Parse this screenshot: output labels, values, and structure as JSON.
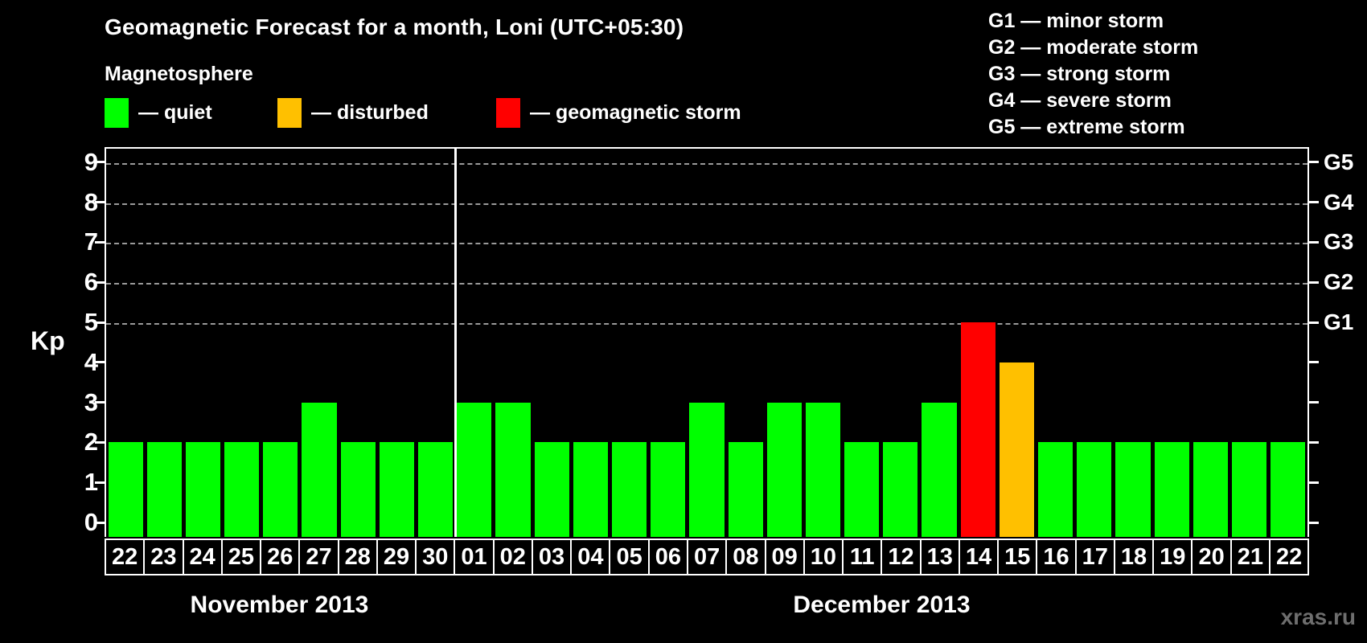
{
  "title": "Geomagnetic Forecast for a month, Loni (UTC+05:30)",
  "legend": {
    "heading": "Magnetosphere",
    "items": [
      {
        "name": "quiet",
        "label": "— quiet",
        "color": "#00ff00"
      },
      {
        "name": "disturbed",
        "label": "— disturbed",
        "color": "#ffc000"
      },
      {
        "name": "geomagnetic-storm",
        "label": "— geomagnetic storm",
        "color": "#ff0000"
      }
    ]
  },
  "storm_scale": [
    "G1 — minor storm",
    "G2 — moderate storm",
    "G3 — strong storm",
    "G4 — severe storm",
    "G5 — extreme storm"
  ],
  "watermark": "xras.ru",
  "chart_data": {
    "type": "bar",
    "title": "Geomagnetic Forecast for a month, Loni (UTC+05:30)",
    "ylabel": "Kp",
    "ylim": [
      0,
      9
    ],
    "y_ticks": [
      0,
      1,
      2,
      3,
      4,
      5,
      6,
      7,
      8,
      9
    ],
    "gridlines_at_kp": [
      5,
      6,
      7,
      8,
      9
    ],
    "grid_style": "dashed",
    "legend_position": "top-left and top-right",
    "right_axis_labels": [
      {
        "kp": 5,
        "label": "G1"
      },
      {
        "kp": 6,
        "label": "G2"
      },
      {
        "kp": 7,
        "label": "G3"
      },
      {
        "kp": 8,
        "label": "G4"
      },
      {
        "kp": 9,
        "label": "G5"
      }
    ],
    "status_colors": {
      "quiet": "#00ff00",
      "disturbed": "#ffc000",
      "storm": "#ff0000"
    },
    "months": [
      {
        "name": "November 2013",
        "days": [
          "22",
          "23",
          "24",
          "25",
          "26",
          "27",
          "28",
          "29",
          "30"
        ],
        "kp": [
          2,
          2,
          2,
          2,
          2,
          3,
          2,
          2,
          2
        ],
        "status": [
          "quiet",
          "quiet",
          "quiet",
          "quiet",
          "quiet",
          "quiet",
          "quiet",
          "quiet",
          "quiet"
        ]
      },
      {
        "name": "December 2013",
        "days": [
          "01",
          "02",
          "03",
          "04",
          "05",
          "06",
          "07",
          "08",
          "09",
          "10",
          "11",
          "12",
          "13",
          "14",
          "15",
          "16",
          "17",
          "18",
          "19",
          "20",
          "21",
          "22"
        ],
        "kp": [
          3,
          3,
          2,
          2,
          2,
          2,
          3,
          2,
          3,
          3,
          2,
          2,
          3,
          5,
          4,
          2,
          2,
          2,
          2,
          2,
          2,
          2
        ],
        "status": [
          "quiet",
          "quiet",
          "quiet",
          "quiet",
          "quiet",
          "quiet",
          "quiet",
          "quiet",
          "quiet",
          "quiet",
          "quiet",
          "quiet",
          "quiet",
          "storm",
          "disturbed",
          "quiet",
          "quiet",
          "quiet",
          "quiet",
          "quiet",
          "quiet",
          "quiet"
        ]
      }
    ]
  }
}
